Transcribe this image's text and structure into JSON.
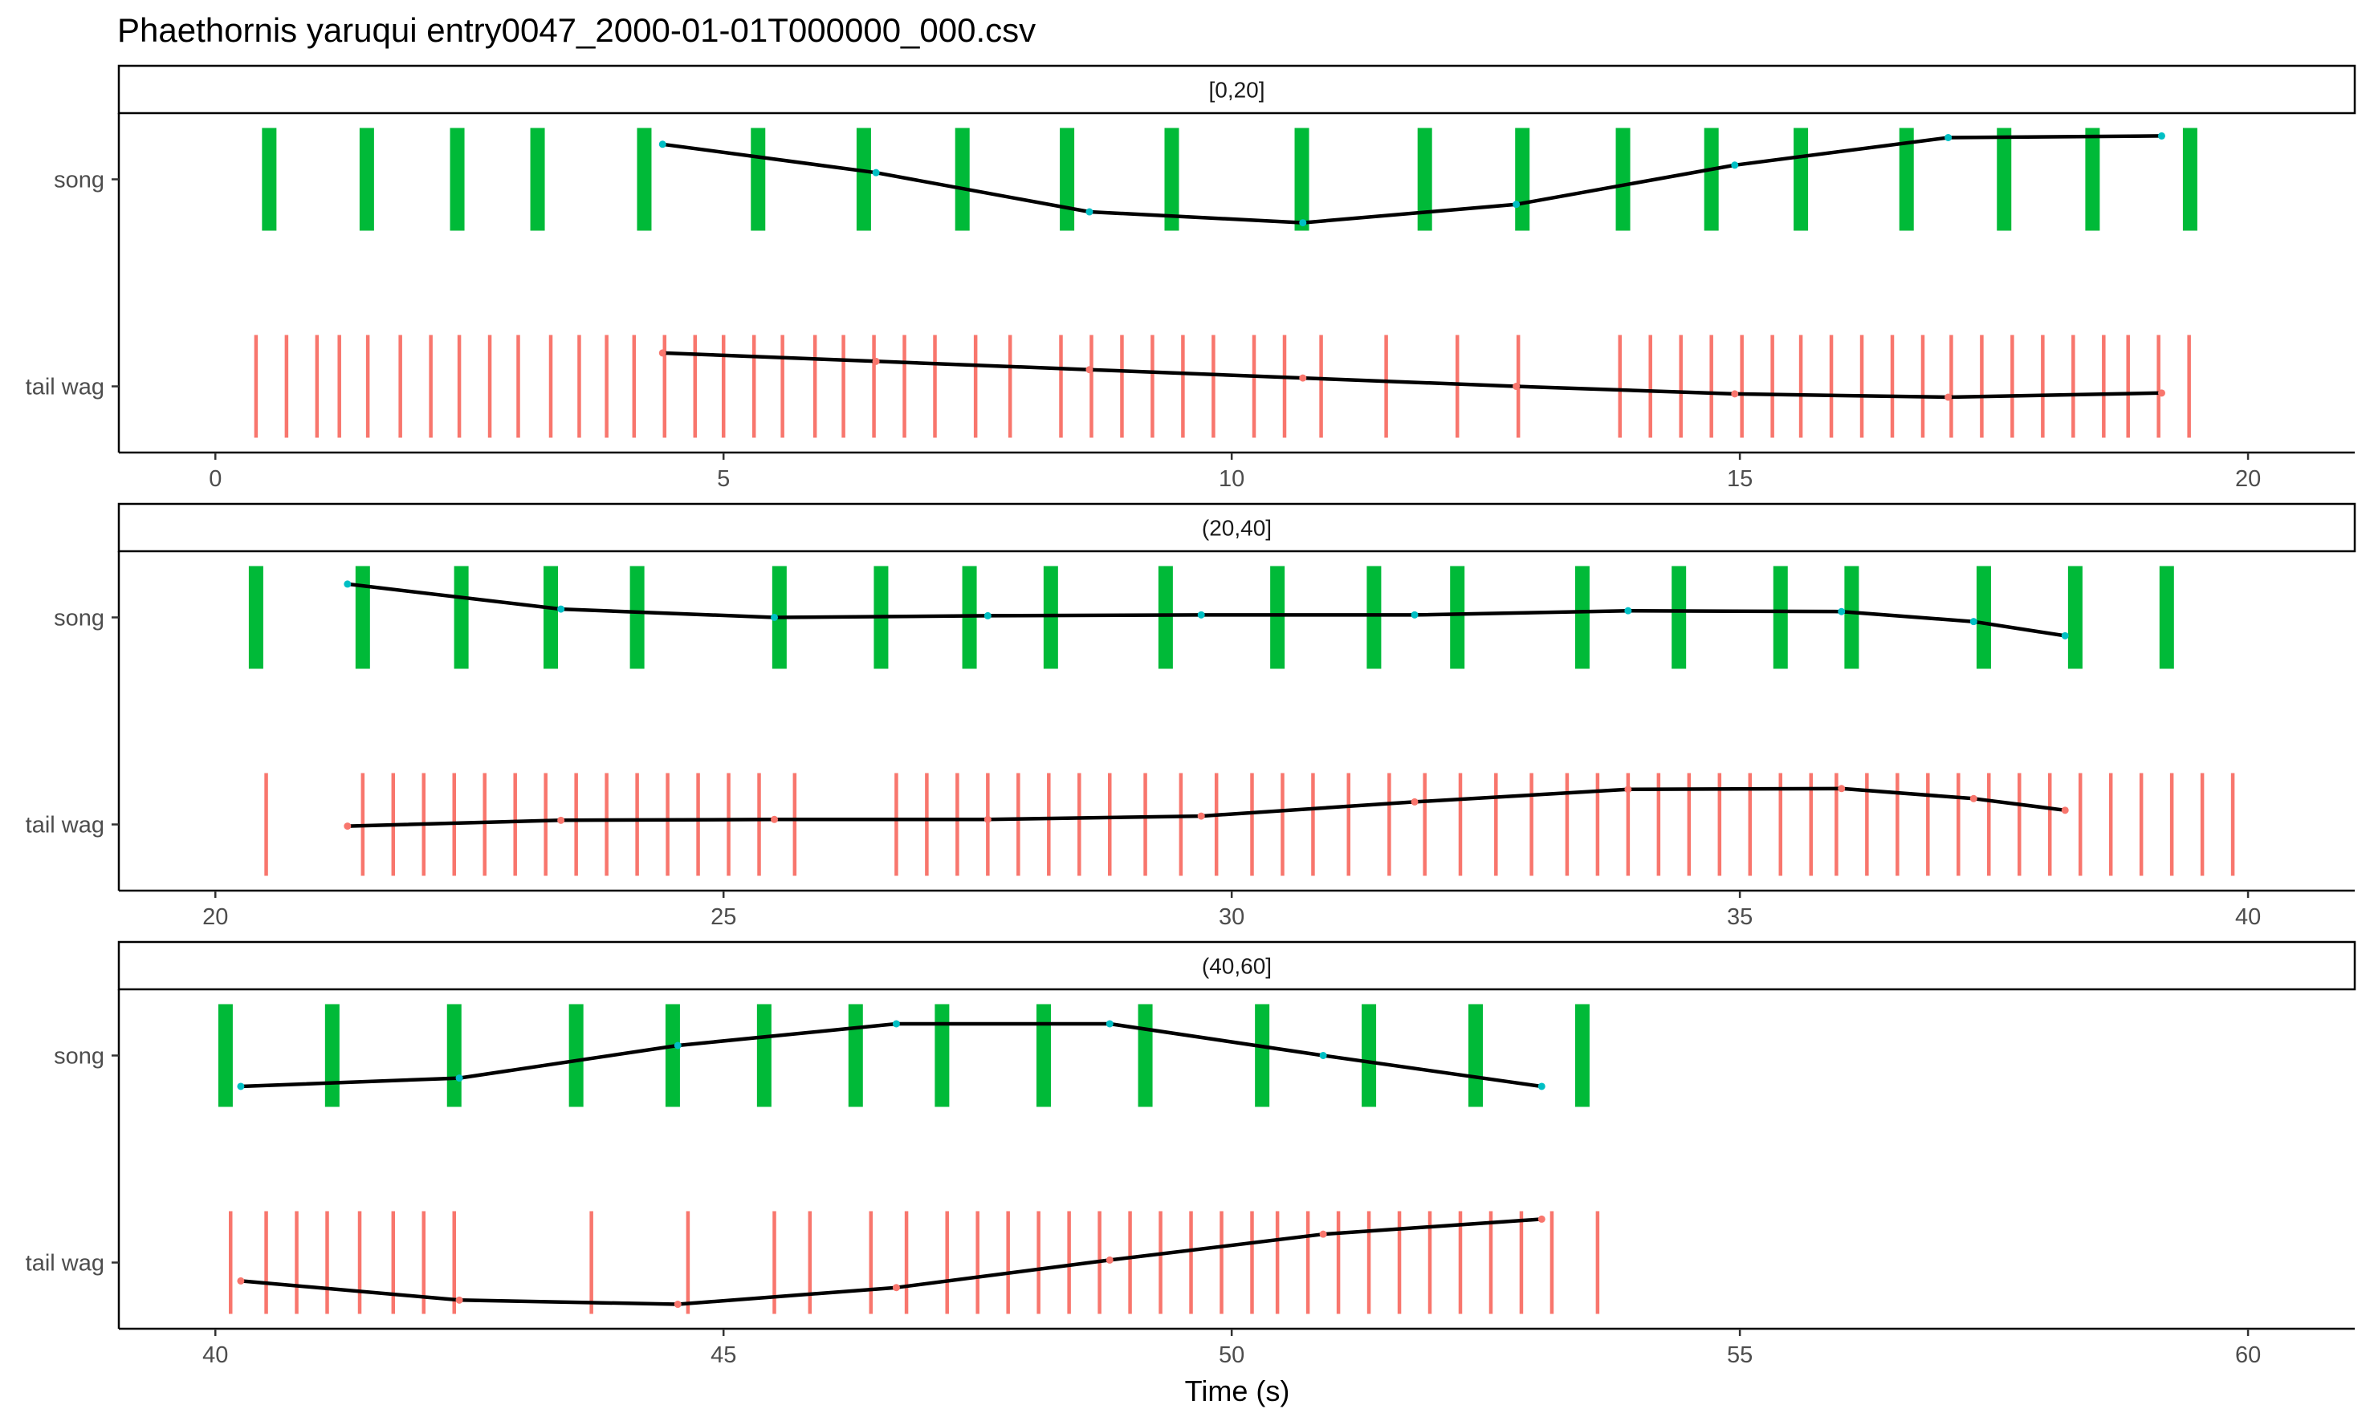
{
  "chart_data": {
    "type": "faceted-event-plot",
    "title": "Phaethornis yaruqui   entry0047_2000-01-01T000000_000.csv",
    "xlabel": "Time (s)",
    "ylabel": "",
    "grid": false,
    "legend": "none",
    "y_categories": [
      "song",
      "tail wag"
    ],
    "colors": {
      "song": "#00BA38",
      "tail_wag": "#F8766D",
      "trend_line": "#000000",
      "song_points": "#00BFC4",
      "tail_wag_points": "#F8766D",
      "axis": "#333333",
      "tick_text": "#4d4d4d"
    },
    "panels": [
      {
        "strip": "[0,20]",
        "xlim": [
          -0.95,
          21.05
        ],
        "xticks": [
          0,
          5,
          10,
          15,
          20
        ],
        "xtick_labels": [
          "0",
          "5",
          "10",
          "15",
          "20"
        ],
        "song_events": [
          0.53,
          1.49,
          2.38,
          3.17,
          4.22,
          5.34,
          6.38,
          7.35,
          8.38,
          9.41,
          10.69,
          11.9,
          12.86,
          13.85,
          14.72,
          15.6,
          16.64,
          17.6,
          18.47,
          19.43
        ],
        "tail_wag_events": [
          0.4,
          0.7,
          1.0,
          1.22,
          1.5,
          1.82,
          2.12,
          2.4,
          2.7,
          2.98,
          3.3,
          3.58,
          3.85,
          4.12,
          4.42,
          4.72,
          5.0,
          5.3,
          5.58,
          5.9,
          6.18,
          6.48,
          6.78,
          7.08,
          7.48,
          7.82,
          8.32,
          8.62,
          8.92,
          9.22,
          9.52,
          9.82,
          10.22,
          10.52,
          10.88,
          11.52,
          12.22,
          12.82,
          13.82,
          14.12,
          14.42,
          14.72,
          15.02,
          15.32,
          15.6,
          15.9,
          16.2,
          16.5,
          16.8,
          17.08,
          17.38,
          17.68,
          17.98,
          18.28,
          18.58,
          18.82,
          19.12,
          19.42
        ],
        "song_trend": [
          [
            4.4,
            0.42
          ],
          [
            6.5,
            0.08
          ],
          [
            8.6,
            -0.39
          ],
          [
            10.7,
            -0.52
          ],
          [
            12.8,
            -0.3
          ],
          [
            14.95,
            0.17
          ],
          [
            17.05,
            0.5
          ],
          [
            19.15,
            0.52
          ]
        ],
        "tail_wag_trend": [
          [
            4.4,
            0.4
          ],
          [
            6.5,
            0.3
          ],
          [
            8.6,
            0.2
          ],
          [
            10.7,
            0.1
          ],
          [
            12.8,
            0.0
          ],
          [
            14.95,
            -0.09
          ],
          [
            17.05,
            -0.13
          ],
          [
            19.15,
            -0.08
          ]
        ]
      },
      {
        "strip": "(20,40]",
        "xlim": [
          19.05,
          41.05
        ],
        "xticks": [
          20,
          25,
          30,
          35,
          40
        ],
        "xtick_labels": [
          "20",
          "25",
          "30",
          "35",
          "40"
        ],
        "song_events": [
          20.4,
          21.45,
          22.42,
          23.3,
          24.15,
          25.55,
          26.55,
          27.42,
          28.22,
          29.35,
          30.45,
          31.4,
          32.22,
          33.45,
          34.4,
          35.4,
          36.1,
          37.4,
          38.3,
          39.2
        ],
        "tail_wag_events": [
          20.5,
          21.45,
          21.75,
          22.05,
          22.35,
          22.65,
          22.95,
          23.25,
          23.55,
          23.85,
          24.15,
          24.45,
          24.75,
          25.05,
          25.35,
          25.7,
          26.7,
          27.0,
          27.3,
          27.6,
          27.9,
          28.2,
          28.5,
          28.8,
          29.15,
          29.5,
          29.85,
          30.2,
          30.5,
          30.8,
          31.15,
          31.55,
          31.9,
          32.25,
          32.6,
          32.95,
          33.3,
          33.6,
          33.9,
          34.2,
          34.5,
          34.8,
          35.1,
          35.4,
          35.7,
          35.95,
          36.25,
          36.55,
          36.85,
          37.15,
          37.45,
          37.75,
          38.05,
          38.35,
          38.65,
          38.95,
          39.25,
          39.55,
          39.85
        ],
        "song_trend": [
          [
            21.3,
            0.4
          ],
          [
            23.4,
            0.1
          ],
          [
            25.5,
            0.0
          ],
          [
            27.6,
            0.02
          ],
          [
            29.7,
            0.03
          ],
          [
            31.8,
            0.03
          ],
          [
            33.9,
            0.08
          ],
          [
            36.0,
            0.07
          ],
          [
            37.3,
            -0.05
          ],
          [
            38.2,
            -0.22
          ]
        ],
        "tail_wag_trend": [
          [
            21.3,
            -0.02
          ],
          [
            23.4,
            0.05
          ],
          [
            25.5,
            0.06
          ],
          [
            27.6,
            0.06
          ],
          [
            29.7,
            0.1
          ],
          [
            31.8,
            0.27
          ],
          [
            33.9,
            0.42
          ],
          [
            36.0,
            0.43
          ],
          [
            37.3,
            0.31
          ],
          [
            38.2,
            0.17
          ]
        ]
      },
      {
        "strip": "(40,60]",
        "xlim": [
          39.05,
          61.05
        ],
        "xticks": [
          40,
          45,
          50,
          55,
          60
        ],
        "xtick_labels": [
          "40",
          "45",
          "50",
          "55",
          "60"
        ],
        "song_events": [
          40.1,
          41.15,
          42.35,
          43.55,
          44.5,
          45.4,
          46.3,
          47.15,
          48.15,
          49.15,
          50.3,
          51.35,
          52.4,
          53.45
        ],
        "tail_wag_events": [
          40.15,
          40.5,
          40.8,
          41.1,
          41.42,
          41.75,
          42.05,
          42.35,
          43.7,
          44.65,
          45.5,
          45.85,
          46.45,
          46.8,
          47.2,
          47.5,
          47.8,
          48.1,
          48.4,
          48.7,
          49.0,
          49.3,
          49.6,
          49.9,
          50.2,
          50.45,
          50.75,
          51.05,
          51.35,
          51.65,
          51.95,
          52.25,
          52.55,
          52.85,
          53.15,
          53.6
        ],
        "song_trend": [
          [
            40.25,
            -0.37
          ],
          [
            42.4,
            -0.27
          ],
          [
            44.55,
            0.12
          ],
          [
            46.7,
            0.38
          ],
          [
            48.8,
            0.38
          ],
          [
            50.9,
            0.0
          ],
          [
            53.05,
            -0.37
          ]
        ],
        "tail_wag_trend": [
          [
            40.25,
            -0.22
          ],
          [
            42.4,
            -0.45
          ],
          [
            44.55,
            -0.5
          ],
          [
            46.7,
            -0.3
          ],
          [
            48.8,
            0.03
          ],
          [
            50.9,
            0.34
          ],
          [
            53.05,
            0.52
          ]
        ]
      }
    ]
  }
}
